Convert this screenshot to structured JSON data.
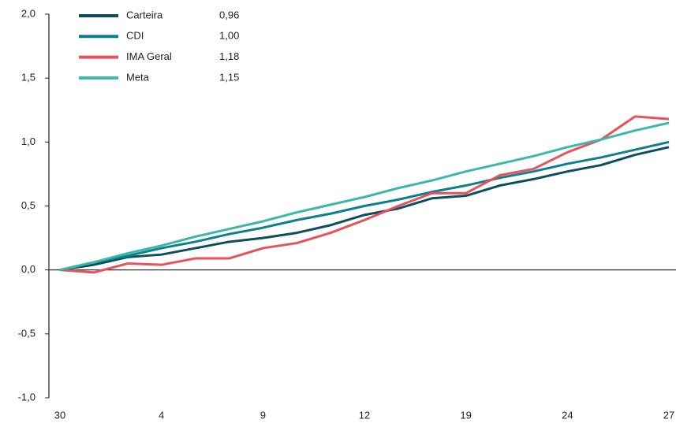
{
  "chart_data": {
    "type": "line",
    "categories": [
      "30",
      null,
      null,
      "4",
      null,
      null,
      "9",
      null,
      null,
      "12",
      null,
      null,
      "19",
      null,
      null,
      "24",
      null,
      null,
      "27"
    ],
    "series": [
      {
        "name": "Carteira",
        "color": "#0b4f5c",
        "value_label": "0,96",
        "values": [
          0,
          0.04,
          0.1,
          0.12,
          0.17,
          0.22,
          0.25,
          0.29,
          0.35,
          0.43,
          0.48,
          0.56,
          0.58,
          0.66,
          0.71,
          0.77,
          0.82,
          0.9,
          0.96
        ]
      },
      {
        "name": "CDI",
        "color": "#0e7f8c",
        "value_label": "1,00",
        "values": [
          0,
          0.06,
          0.11,
          0.17,
          0.22,
          0.28,
          0.33,
          0.39,
          0.44,
          0.5,
          0.55,
          0.61,
          0.66,
          0.72,
          0.77,
          0.83,
          0.88,
          0.94,
          1.0
        ]
      },
      {
        "name": "IMA Geral",
        "color": "#e8505b",
        "value_label": "1,18",
        "values": [
          0,
          -0.02,
          0.05,
          0.04,
          0.09,
          0.09,
          0.17,
          0.21,
          0.29,
          0.39,
          0.5,
          0.6,
          0.6,
          0.74,
          0.79,
          0.92,
          1.02,
          1.2,
          1.18
        ]
      },
      {
        "name": "Meta",
        "color": "#3bb8a8",
        "value_label": "1,15",
        "values": [
          0,
          0.06,
          0.13,
          0.19,
          0.26,
          0.32,
          0.38,
          0.45,
          0.51,
          0.57,
          0.64,
          0.7,
          0.77,
          0.83,
          0.89,
          0.96,
          1.02,
          1.09,
          1.15
        ]
      }
    ],
    "ylim": [
      -1,
      2
    ],
    "yticks": [
      {
        "value": -1,
        "label": "-1,0"
      },
      {
        "value": -0.5,
        "label": "-0,5"
      },
      {
        "value": 0,
        "label": "0,0"
      },
      {
        "value": 0.5,
        "label": "0,5"
      },
      {
        "value": 1,
        "label": "1,0"
      },
      {
        "value": 1.5,
        "label": "1,5"
      },
      {
        "value": 2,
        "label": "2,0"
      }
    ],
    "grid": false,
    "legend": "upper left"
  }
}
